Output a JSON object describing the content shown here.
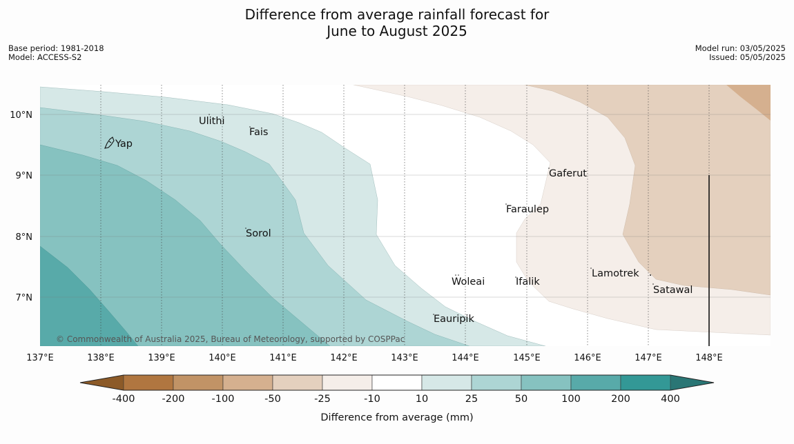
{
  "title": {
    "line1": "Difference from average rainfall forecast for",
    "line2": "June to August 2025"
  },
  "meta_left": {
    "base_period": "Base period: 1981-2018",
    "model": "Model: ACCESS-S2"
  },
  "meta_right": {
    "model_run": "Model run: 03/05/2025",
    "issued": "Issued: 05/05/2025"
  },
  "axes": {
    "longitude_ticks": [
      "137°E",
      "138°E",
      "139°E",
      "140°E",
      "141°E",
      "142°E",
      "143°E",
      "144°E",
      "145°E",
      "146°E",
      "147°E",
      "148°E"
    ],
    "latitude_ticks": [
      "10°N",
      "9°N",
      "8°N",
      "7°N"
    ]
  },
  "places": [
    "Yap",
    "Ulithi",
    "Fais",
    "Sorol",
    "Gaferut",
    "Faraulep",
    "Woleai",
    "Ifalik",
    "Lamotrek",
    "Satawal",
    "Eauripik"
  ],
  "copyright": "© Commonwealth of Australia 2025, Bureau of Meteorology, supported by COSPPac",
  "colorbar": {
    "label": "Difference from average (mm)",
    "ticks": [
      "-400",
      "-200",
      "-100",
      "-50",
      "-25",
      "-10",
      "10",
      "25",
      "50",
      "100",
      "200",
      "400"
    ],
    "colors": [
      "#8c5a28",
      "#b07640",
      "#c19366",
      "#d5b08f",
      "#e4d0be",
      "#f5eee9",
      "#ffffff",
      "#d6e8e7",
      "#add5d4",
      "#86c2c0",
      "#58aaa9",
      "#339896",
      "#2a7675"
    ]
  }
}
